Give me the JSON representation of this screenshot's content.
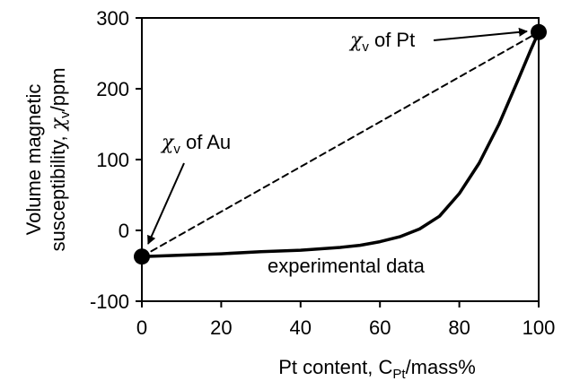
{
  "chart_data": {
    "type": "line",
    "xlabel": {
      "prefix": "Pt content, C",
      "sub": "Pt",
      "suffix": "/mass%"
    },
    "ylabel": {
      "line1": "Volume magnetic",
      "line2_prefix": "susceptibility, ",
      "line2_symbol": "χ",
      "line2_sub": "v",
      "line2_suffix": "/ppm"
    },
    "xlim": [
      0,
      100
    ],
    "ylim": [
      -100,
      300
    ],
    "x_ticks": [
      0,
      20,
      40,
      60,
      80,
      100
    ],
    "y_ticks": [
      -100,
      0,
      100,
      200,
      300
    ],
    "x_tick_labels": [
      "0",
      "20",
      "40",
      "60",
      "80",
      "100"
    ],
    "y_tick_labels": [
      "-100",
      "0",
      "100",
      "200",
      "300"
    ],
    "grid": false,
    "series": [
      {
        "style": "solid",
        "x": [
          0,
          10,
          20,
          30,
          40,
          50,
          55,
          60,
          65,
          70,
          75,
          80,
          85,
          90,
          95,
          98,
          100
        ],
        "y": [
          -37,
          -35,
          -33,
          -30,
          -28,
          -24,
          -21,
          -16,
          -9,
          2,
          20,
          52,
          95,
          150,
          215,
          255,
          280
        ]
      },
      {
        "style": "dashed",
        "x": [
          0,
          100
        ],
        "y": [
          -37,
          280
        ]
      }
    ],
    "endpoints": [
      {
        "x": 0,
        "y": -37
      },
      {
        "x": 100,
        "y": 280
      }
    ],
    "annotations": [
      {
        "symbol": "χ",
        "sub": "v",
        "text": " of Au"
      },
      {
        "symbol": "χ",
        "sub": "v",
        "text": " of Pt"
      },
      {
        "text": "experimental data"
      }
    ]
  }
}
